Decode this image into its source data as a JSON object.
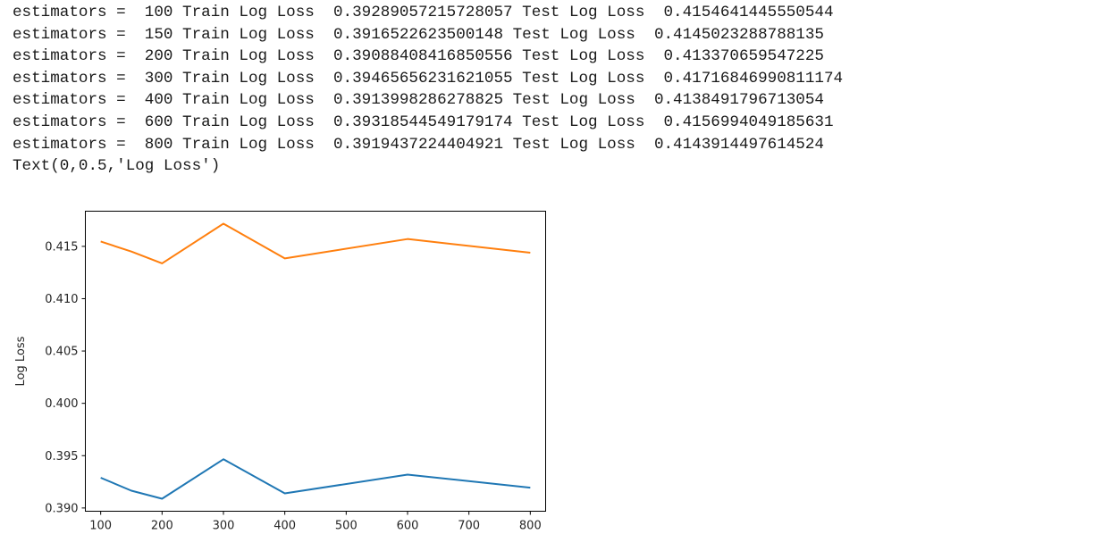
{
  "output_lines": [
    "estimators =  100 Train Log Loss  0.39289057215728057 Test Log Loss  0.4154641445550544",
    "estimators =  150 Train Log Loss  0.3916522623500148 Test Log Loss  0.4145023288788135",
    "estimators =  200 Train Log Loss  0.3908840841685055​6 Test Log Loss  0.413370659547225",
    "estimators =  300 Train Log Loss  0.3946565623162105​5 Test Log Loss  0.41716846990811174",
    "estimators =  400 Train Log Loss  0.3913998286278825 Test Log Loss  0.4138491796713054",
    "estimators =  600 Train Log Loss  0.39318544549179174 Test Log Loss  0.4156994049185631",
    "estimators =  800 Train Log Loss  0.3919437224404921 Test Log Loss  0.4143914497614524",
    "Text(0,0.5,'Log Loss')"
  ],
  "chart_data": {
    "type": "line",
    "x": [
      100,
      150,
      200,
      300,
      400,
      600,
      800
    ],
    "series": [
      {
        "color": "#1f77b4",
        "values": [
          0.39289057215728057,
          0.3916522623500148,
          0.39088408416850556,
          0.39465656231621055,
          0.3913998286278825,
          0.39318544549179174,
          0.3919437224404921
        ]
      },
      {
        "color": "#ff7f0e",
        "values": [
          0.4154641445550544,
          0.4145023288788135,
          0.413370659547225,
          0.41716846990811174,
          0.4138491796713054,
          0.4156994049185631,
          0.4143914497614524
        ]
      }
    ],
    "xlabel": "",
    "ylabel": "Log Loss",
    "xlim": [
      75,
      825
    ],
    "ylim": [
      0.38969,
      0.41836
    ],
    "xticks": [
      100,
      200,
      300,
      400,
      500,
      600,
      700,
      800
    ],
    "xtick_labels": [
      "100",
      "200",
      "300",
      "400",
      "500",
      "600",
      "700",
      "800"
    ],
    "yticks": [
      0.39,
      0.395,
      0.4,
      0.405,
      0.41,
      0.415
    ],
    "ytick_labels": [
      "0.390",
      "0.395",
      "0.400",
      "0.405",
      "0.410",
      "0.415"
    ],
    "grid": false,
    "legend": false
  }
}
